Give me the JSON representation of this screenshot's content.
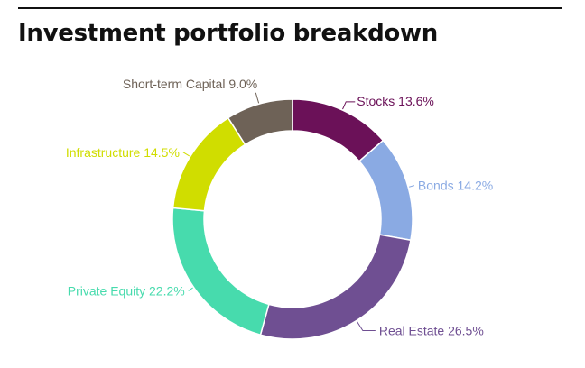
{
  "header": {
    "title": "Investment portfolio breakdown"
  },
  "chart_data": {
    "type": "pie",
    "variant": "donut",
    "title": "Investment portfolio breakdown",
    "legend": "none",
    "start_angle_deg": 0,
    "direction": "clockwise",
    "slices": [
      {
        "label": "Stocks",
        "value": 13.6,
        "display": "Stocks 13.6%",
        "color": "#6b1158"
      },
      {
        "label": "Bonds",
        "value": 14.2,
        "display": "Bonds 14.2%",
        "color": "#8aaae3"
      },
      {
        "label": "Real Estate",
        "value": 26.5,
        "display": "Real Estate 26.5%",
        "color": "#6f4f92"
      },
      {
        "label": "Private Equity",
        "value": 22.2,
        "display": "Private Equity 22.2%",
        "color": "#47dbad"
      },
      {
        "label": "Infrastructure",
        "value": 14.5,
        "display": "Infrastructure 14.5%",
        "color": "#d0dd00"
      },
      {
        "label": "Short-term Capital",
        "value": 9.0,
        "display": "Short-term Capital 9.0%",
        "color": "#6e6257"
      }
    ]
  }
}
